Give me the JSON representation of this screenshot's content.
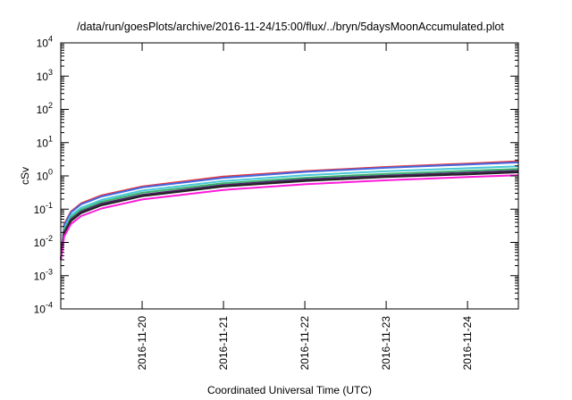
{
  "chart_data": {
    "type": "line",
    "title": "/data/run/goesPlots/archive/2016-11-24/15:00/flux/../bryn/5daysMoonAccumulated.plot",
    "xlabel": "Coordinated Universal Time (UTC)",
    "ylabel": "cSv",
    "x_type": "datetime",
    "xlim": [
      "2016-11-19T00:00",
      "2016-11-24T15:00"
    ],
    "x_ticks": [
      "2016-11-20",
      "2016-11-21",
      "2016-11-22",
      "2016-11-23",
      "2016-11-24"
    ],
    "y_scale": "log",
    "ylim": [
      0.0001,
      10000
    ],
    "y_ticks": [
      {
        "value": 0.0001,
        "mantissa": "10",
        "exp": "-4"
      },
      {
        "value": 0.001,
        "mantissa": "10",
        "exp": "-3"
      },
      {
        "value": 0.01,
        "mantissa": "10",
        "exp": "-2"
      },
      {
        "value": 0.1,
        "mantissa": "10",
        "exp": "-1"
      },
      {
        "value": 1,
        "mantissa": "10",
        "exp": "0"
      },
      {
        "value": 10,
        "mantissa": "10",
        "exp": "1"
      },
      {
        "value": 100,
        "mantissa": "10",
        "exp": "2"
      },
      {
        "value": 1000,
        "mantissa": "10",
        "exp": "3"
      },
      {
        "value": 10000,
        "mantissa": "10",
        "exp": "4"
      }
    ],
    "grid": false,
    "legend": "none",
    "x_points": [
      "2016-11-19T00:00",
      "2016-11-19T01:00",
      "2016-11-19T03:00",
      "2016-11-19T06:00",
      "2016-11-19T12:00",
      "2016-11-20T00:00",
      "2016-11-21T00:00",
      "2016-11-22T00:00",
      "2016-11-23T00:00",
      "2016-11-24T00:00",
      "2016-11-24T15:00"
    ],
    "series": [
      {
        "color": "#e8383d",
        "values": [
          0.003,
          0.035,
          0.085,
          0.15,
          0.26,
          0.48,
          0.95,
          1.4,
          1.85,
          2.35,
          2.75
        ]
      },
      {
        "color": "#4169e1",
        "values": [
          0.003,
          0.032,
          0.08,
          0.14,
          0.24,
          0.45,
          0.88,
          1.32,
          1.75,
          2.2,
          2.55
        ]
      },
      {
        "color": "#49c8d6",
        "values": [
          0.003,
          0.026,
          0.065,
          0.11,
          0.19,
          0.36,
          0.7,
          1.05,
          1.38,
          1.7,
          1.95
        ]
      },
      {
        "color": "#3cb371",
        "values": [
          0.003,
          0.023,
          0.056,
          0.096,
          0.165,
          0.31,
          0.6,
          0.88,
          1.15,
          1.42,
          1.62
        ]
      },
      {
        "color": "#4b2462",
        "values": [
          0.003,
          0.02,
          0.049,
          0.085,
          0.145,
          0.27,
          0.53,
          0.78,
          1.02,
          1.25,
          1.42
        ]
      },
      {
        "color": "#222222",
        "values": [
          0.003,
          0.018,
          0.044,
          0.076,
          0.13,
          0.245,
          0.48,
          0.7,
          0.92,
          1.12,
          1.28
        ]
      },
      {
        "color": "#ff1ad9",
        "values": [
          0.003,
          0.015,
          0.036,
          0.062,
          0.105,
          0.195,
          0.38,
          0.56,
          0.74,
          0.92,
          1.05
        ]
      }
    ]
  }
}
